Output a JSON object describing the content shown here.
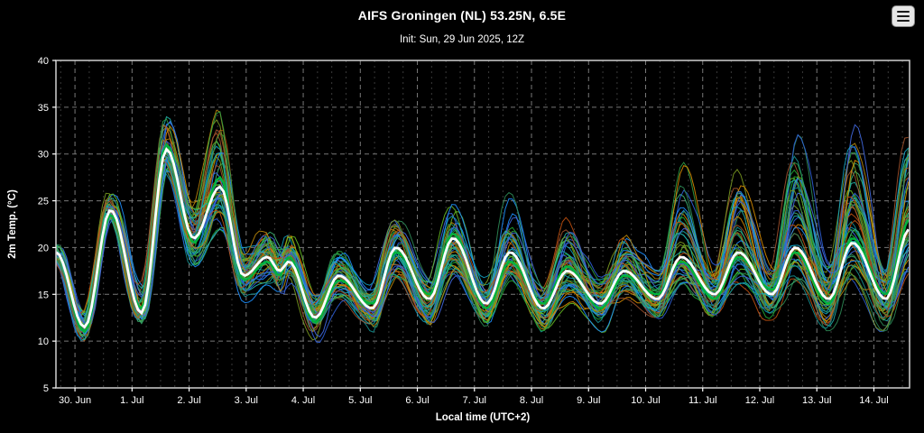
{
  "page": {
    "title": "AIFS Groningen (NL) 53.25N, 6.5E",
    "subtitle": "Init: Sun, 29 Jun 2025, 12Z"
  },
  "colors": {
    "background": "#000000",
    "text": "#ffffff",
    "plot_border": "#cfcfcf",
    "grid_major": "#787878",
    "grid_minor": "#3a3a3a",
    "mean_line": "#ffffff",
    "control_line": "#00b33c"
  },
  "chart_data": {
    "type": "line",
    "title": "AIFS Groningen (NL) 53.25N, 6.5E",
    "subtitle": "Init: Sun, 29 Jun 2025, 12Z",
    "xlabel": "Local time (UTC+2)",
    "ylabel": "2m Temp. (°C)",
    "ylim": [
      5,
      40
    ],
    "yticks": [
      5,
      10,
      15,
      20,
      25,
      30,
      35,
      40
    ],
    "x_hours_range": [
      -8,
      351
    ],
    "xtick_hours": [
      0,
      24,
      48,
      72,
      96,
      120,
      144,
      168,
      192,
      216,
      240,
      264,
      288,
      312,
      336
    ],
    "xtick_labels": [
      "30. Jun",
      "1. Jul",
      "2. Jul",
      "3. Jul",
      "4. Jul",
      "5. Jul",
      "6. Jul",
      "7. Jul",
      "8. Jul",
      "9. Jul",
      "10. Jul",
      "11. Jul",
      "12. Jul",
      "13. Jul",
      "14. Jul"
    ],
    "grid": true,
    "legend": "none",
    "anchors_t": [
      -8,
      4,
      15,
      28,
      38.5,
      50,
      61,
      71,
      81,
      86,
      90,
      101,
      111,
      125,
      135,
      149,
      159,
      173,
      183,
      197,
      207,
      221,
      231,
      245,
      255,
      269,
      279,
      293,
      303,
      317,
      327,
      341,
      351
    ],
    "series": [
      {
        "name": "ensemble-mean",
        "values": [
          19.5,
          11.5,
          24,
          13,
          30.5,
          21,
          26.5,
          17,
          19,
          17.5,
          18.5,
          12.5,
          17,
          13.5,
          20,
          14.5,
          21,
          14,
          19.5,
          13.5,
          17.5,
          14,
          17.5,
          14.5,
          19,
          15,
          19.5,
          15,
          20,
          14.5,
          20.5,
          14.5,
          22
        ]
      },
      {
        "name": "control-run",
        "values": [
          19.5,
          11.0,
          23.5,
          13.5,
          31.0,
          20.5,
          27.5,
          16.5,
          18.5,
          17.0,
          19.0,
          12.0,
          16.5,
          14.0,
          19.5,
          15.0,
          21.5,
          13.5,
          18.5,
          14.0,
          18.0,
          13.5,
          17.0,
          15.0,
          18.5,
          14.5,
          19.0,
          15.5,
          19.5,
          14.0,
          21.0,
          15.0,
          23.0
        ]
      }
    ],
    "envelope_lo": [
      18.5,
      10,
      23,
      12,
      28,
      18,
      22,
      14,
      16,
      15,
      16,
      10,
      14,
      11,
      17,
      12,
      17,
      11.5,
      16,
      11,
      14,
      11,
      14,
      12,
      16,
      12,
      16,
      12,
      16,
      11,
      16,
      11,
      17
    ],
    "envelope_hi": [
      20.5,
      13,
      26,
      16,
      34,
      25,
      34.5,
      20,
      22,
      20,
      21.5,
      15,
      20,
      16,
      23.5,
      17,
      25,
      17,
      27,
      16.5,
      23,
      17,
      22,
      18,
      29,
      18,
      28.5,
      18,
      32,
      18,
      33,
      18,
      32
    ],
    "members": {
      "count": 50,
      "palette": [
        "#2f5fd8",
        "#2e8b57",
        "#22aa33",
        "#d88c00",
        "#149090",
        "#66bb22",
        "#1e90ff",
        "#b8860b",
        "#3cb371",
        "#0fa0c0",
        "#7a9a20",
        "#c05010",
        "#20b2aa",
        "#4169e1",
        "#2f9e44",
        "#a0522d"
      ]
    }
  }
}
